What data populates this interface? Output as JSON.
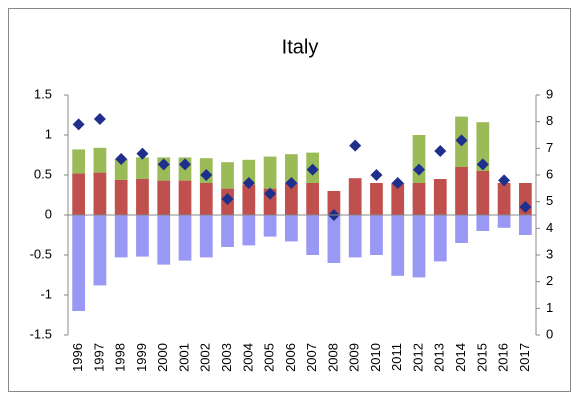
{
  "chart_data": {
    "type": "bar",
    "title": "Italy",
    "categories": [
      "1996",
      "1997",
      "1998",
      "1999",
      "2000",
      "2001",
      "2002",
      "2003",
      "2004",
      "2005",
      "2006",
      "2007",
      "2008",
      "2009",
      "2010",
      "2011",
      "2012",
      "2013",
      "2014",
      "2015",
      "2016",
      "2017"
    ],
    "series": [
      {
        "color": "#c0504d",
        "values": [
          0.52,
          0.53,
          0.44,
          0.45,
          0.43,
          0.43,
          0.4,
          0.33,
          0.38,
          0.33,
          0.4,
          0.4,
          0.3,
          0.46,
          0.4,
          0.4,
          0.4,
          0.45,
          0.6,
          0.55,
          0.4,
          0.4
        ]
      },
      {
        "color": "#9bbb59",
        "values": [
          0.3,
          0.31,
          0.26,
          0.27,
          0.29,
          0.29,
          0.31,
          0.33,
          0.31,
          0.4,
          0.36,
          0.38,
          0,
          0,
          0,
          0,
          0.6,
          0,
          0.63,
          0.61,
          0,
          0
        ]
      },
      {
        "color": "#9999f5",
        "values": [
          -1.2,
          -0.88,
          -0.53,
          -0.52,
          -0.62,
          -0.57,
          -0.53,
          -0.4,
          -0.38,
          -0.27,
          -0.33,
          -0.5,
          -0.6,
          -0.53,
          -0.5,
          -0.76,
          -0.78,
          -0.58,
          -0.35,
          -0.2,
          -0.16,
          -0.25
        ]
      },
      {
        "color": "#1f2f8c",
        "axis": "y2",
        "marker": "diamond",
        "values": [
          7.9,
          8.1,
          6.6,
          6.8,
          6.4,
          6.4,
          6.0,
          5.1,
          5.7,
          5.3,
          5.7,
          6.2,
          4.5,
          7.1,
          6.0,
          5.7,
          6.2,
          6.9,
          7.3,
          6.4,
          5.8,
          4.8
        ]
      }
    ],
    "ylim": [
      -1.5,
      1.5
    ],
    "yticks": [
      -1.5,
      -1,
      -0.5,
      0,
      0.5,
      1,
      1.5
    ],
    "y2lim": [
      0,
      9
    ],
    "y2ticks": [
      0,
      1,
      2,
      3,
      4,
      5,
      6,
      7,
      8,
      9
    ]
  }
}
